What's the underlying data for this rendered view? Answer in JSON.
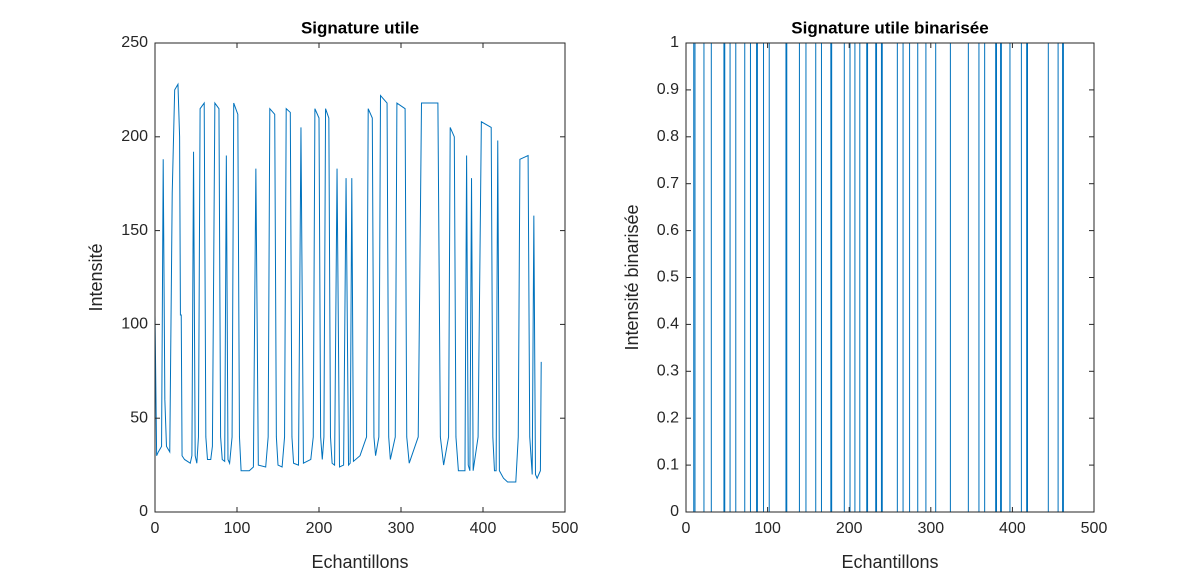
{
  "chart_data": [
    {
      "type": "line",
      "title": "Signature utile",
      "xlabel": "Echantillons",
      "ylabel": "Intensité",
      "x": [
        0,
        2,
        4,
        8,
        10,
        12,
        14,
        18,
        21,
        24,
        28,
        30,
        31,
        32,
        33,
        36,
        43,
        45,
        47,
        49,
        51,
        53,
        55,
        60,
        62,
        64,
        68,
        70,
        73,
        78,
        80,
        82,
        85,
        87,
        89,
        91,
        94,
        96,
        101,
        103,
        105,
        115,
        120,
        123,
        126,
        135,
        138,
        140,
        146,
        148,
        150,
        155,
        158,
        160,
        165,
        167,
        169,
        175,
        178,
        181,
        190,
        193,
        195,
        200,
        202,
        204,
        206,
        208,
        212,
        214,
        216,
        219,
        222,
        225,
        230,
        233,
        236,
        238,
        240,
        242,
        250,
        258,
        260,
        265,
        267,
        269,
        273,
        275,
        283,
        285,
        287,
        293,
        295,
        305,
        307,
        310,
        321,
        325,
        345,
        348,
        352,
        358,
        360,
        365,
        367,
        370,
        378,
        380,
        382,
        384,
        386,
        388,
        394,
        398,
        410,
        412,
        414,
        416,
        418,
        420,
        425,
        430,
        440,
        443,
        445,
        455,
        457,
        460,
        462,
        464,
        466,
        470,
        471
      ],
      "values": [
        105,
        30,
        32,
        35,
        188,
        60,
        35,
        32,
        170,
        225,
        228,
        200,
        105,
        105,
        30,
        28,
        26,
        30,
        192,
        30,
        26,
        40,
        215,
        218,
        40,
        28,
        28,
        35,
        218,
        215,
        40,
        28,
        27,
        190,
        28,
        26,
        40,
        218,
        212,
        40,
        22,
        22,
        24,
        183,
        25,
        24,
        40,
        215,
        212,
        40,
        25,
        24,
        40,
        215,
        213,
        40,
        26,
        25,
        205,
        26,
        28,
        40,
        215,
        210,
        40,
        28,
        40,
        215,
        210,
        40,
        26,
        25,
        183,
        24,
        25,
        178,
        25,
        26,
        178,
        27,
        30,
        40,
        215,
        210,
        40,
        30,
        40,
        222,
        218,
        40,
        28,
        40,
        218,
        215,
        40,
        26,
        40,
        218,
        218,
        40,
        25,
        40,
        205,
        200,
        40,
        22,
        22,
        190,
        25,
        22,
        178,
        22,
        40,
        208,
        205,
        40,
        22,
        22,
        198,
        22,
        18,
        16,
        16,
        40,
        188,
        190,
        40,
        20,
        158,
        20,
        18,
        22,
        80
      ],
      "color": "#0072bd",
      "xlim": [
        0,
        500
      ],
      "ylim": [
        0,
        250
      ],
      "xticks": [
        0,
        100,
        200,
        300,
        400,
        500
      ],
      "yticks": [
        0,
        50,
        100,
        150,
        200,
        250
      ]
    },
    {
      "type": "line",
      "title": "Signature utile binarisée",
      "xlabel": "Echantillons",
      "ylabel": "Intensité binarisée",
      "x": [
        0,
        9.5,
        9.5,
        11,
        11,
        22,
        22,
        31,
        31,
        46.5,
        46.5,
        47.5,
        47.5,
        54,
        54,
        61,
        61,
        72,
        72,
        79,
        79,
        86.5,
        86.5,
        87.5,
        87.5,
        95,
        95,
        102,
        102,
        122.5,
        122.5,
        123.5,
        123.5,
        139,
        139,
        147,
        147,
        159,
        159,
        166,
        166,
        177.5,
        177.5,
        178.5,
        178.5,
        194,
        194,
        201,
        201,
        207,
        207,
        213,
        213,
        221.5,
        221.5,
        222.5,
        222.5,
        232.5,
        232.5,
        233.5,
        233.5,
        239.5,
        239.5,
        240.5,
        240.5,
        259,
        259,
        266,
        266,
        274,
        274,
        284,
        284,
        294,
        294,
        306,
        306,
        324,
        324,
        346,
        346,
        359,
        359,
        366,
        366,
        379.5,
        379.5,
        380.5,
        380.5,
        385.5,
        385.5,
        386.5,
        386.5,
        397,
        397,
        411,
        411,
        417.5,
        417.5,
        418.5,
        418.5,
        444,
        444,
        456,
        456,
        461.5,
        461.5,
        462.5,
        462.5,
        472
      ],
      "values": [
        0,
        0,
        1,
        1,
        0,
        0,
        1,
        1,
        0,
        0,
        1,
        1,
        0,
        0,
        1,
        1,
        0,
        0,
        1,
        1,
        0,
        0,
        1,
        1,
        0,
        0,
        1,
        1,
        0,
        0,
        1,
        1,
        0,
        0,
        1,
        1,
        0,
        0,
        1,
        1,
        0,
        0,
        1,
        1,
        0,
        0,
        1,
        1,
        0,
        0,
        1,
        1,
        0,
        0,
        1,
        1,
        0,
        0,
        1,
        1,
        0,
        0,
        1,
        1,
        0,
        0,
        1,
        1,
        0,
        0,
        1,
        1,
        0,
        0,
        1,
        1,
        0,
        0,
        1,
        1,
        0,
        0,
        1,
        1,
        0,
        0,
        1,
        1,
        0,
        0,
        1,
        1,
        0,
        0,
        1,
        1,
        0,
        0,
        1,
        1,
        0,
        0,
        1,
        1,
        0,
        0,
        1,
        1,
        0,
        0
      ],
      "color": "#0072bd",
      "xlim": [
        0,
        500
      ],
      "ylim": [
        0,
        1
      ],
      "xticks": [
        0,
        100,
        200,
        300,
        400,
        500
      ],
      "yticks": [
        0,
        0.1,
        0.2,
        0.3,
        0.4,
        0.5,
        0.6,
        0.7,
        0.8,
        0.9,
        1
      ]
    }
  ]
}
